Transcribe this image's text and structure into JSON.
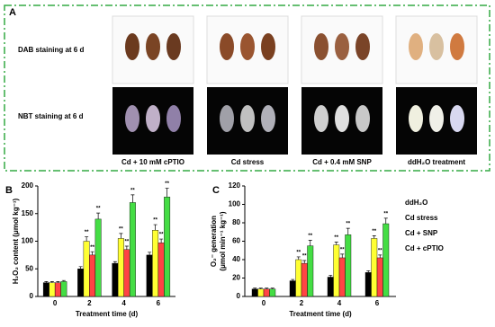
{
  "panel_a": {
    "label": "A",
    "rows": [
      "DAB staining at 6 d",
      "NBT staining at 6 d"
    ],
    "captions": [
      "Cd + 10 mM cPTIO",
      "Cd stress",
      "Cd + 0.4 mM SNP",
      "ddH₂O treatment"
    ]
  },
  "chart_data": [
    {
      "type": "bar",
      "panel": "B",
      "xlabel": "Treatment time (d)",
      "ylabel": [
        "H₂O₂ content (μmol kg⁻¹)"
      ],
      "categories": [
        "0",
        "2",
        "4",
        "6"
      ],
      "ylim": [
        0,
        200
      ],
      "yticks": [
        0,
        50,
        100,
        150,
        200
      ],
      "legend": false,
      "series": [
        {
          "color": "#000000",
          "values": [
            25,
            50,
            60,
            75
          ],
          "errors": [
            2,
            4,
            3,
            5
          ],
          "significance": [
            null,
            null,
            null,
            null
          ]
        },
        {
          "color": "#ffff33",
          "values": [
            25,
            100,
            105,
            120
          ],
          "errors": [
            2,
            8,
            9,
            10
          ],
          "significance": [
            null,
            "**",
            "**",
            "**"
          ]
        },
        {
          "color": "#ff4444",
          "values": [
            25,
            75,
            85,
            97
          ],
          "errors": [
            2,
            6,
            6,
            7
          ],
          "significance": [
            null,
            "**",
            "**",
            "**"
          ]
        },
        {
          "color": "#44dd44",
          "values": [
            27,
            140,
            170,
            180
          ],
          "errors": [
            2,
            11,
            14,
            16
          ],
          "significance": [
            null,
            "**",
            "**",
            "**"
          ]
        }
      ]
    },
    {
      "type": "bar",
      "panel": "C",
      "xlabel": "Treatment time (d)",
      "ylabel": [
        "O₂⁻ generation",
        "(μmol min⁻¹ kg⁻¹)"
      ],
      "categories": [
        "0",
        "2",
        "4",
        "6"
      ],
      "ylim": [
        0,
        120
      ],
      "yticks": [
        0,
        20,
        40,
        60,
        80,
        100,
        120
      ],
      "legend": true,
      "series": [
        {
          "name": "ddH₂O",
          "color": "#000000",
          "values": [
            8,
            17,
            21,
            26
          ],
          "errors": [
            1,
            1.5,
            2,
            2
          ],
          "significance": [
            null,
            null,
            null,
            null
          ]
        },
        {
          "name": "Cd stress",
          "color": "#ffff33",
          "values": [
            8,
            40,
            56,
            63
          ],
          "errors": [
            1,
            3,
            3,
            3
          ],
          "significance": [
            null,
            "**",
            "**",
            "**"
          ]
        },
        {
          "name": "Cd + SNP",
          "color": "#ff4444",
          "values": [
            8,
            36,
            42,
            42
          ],
          "errors": [
            1,
            3,
            4,
            3
          ],
          "significance": [
            null,
            "**",
            "**",
            "**"
          ]
        },
        {
          "name": "Cd + cPTIO",
          "color": "#44dd44",
          "values": [
            8,
            55,
            67,
            79
          ],
          "errors": [
            1,
            6,
            7,
            6
          ],
          "significance": [
            null,
            "**",
            "**",
            "**"
          ]
        }
      ]
    }
  ]
}
